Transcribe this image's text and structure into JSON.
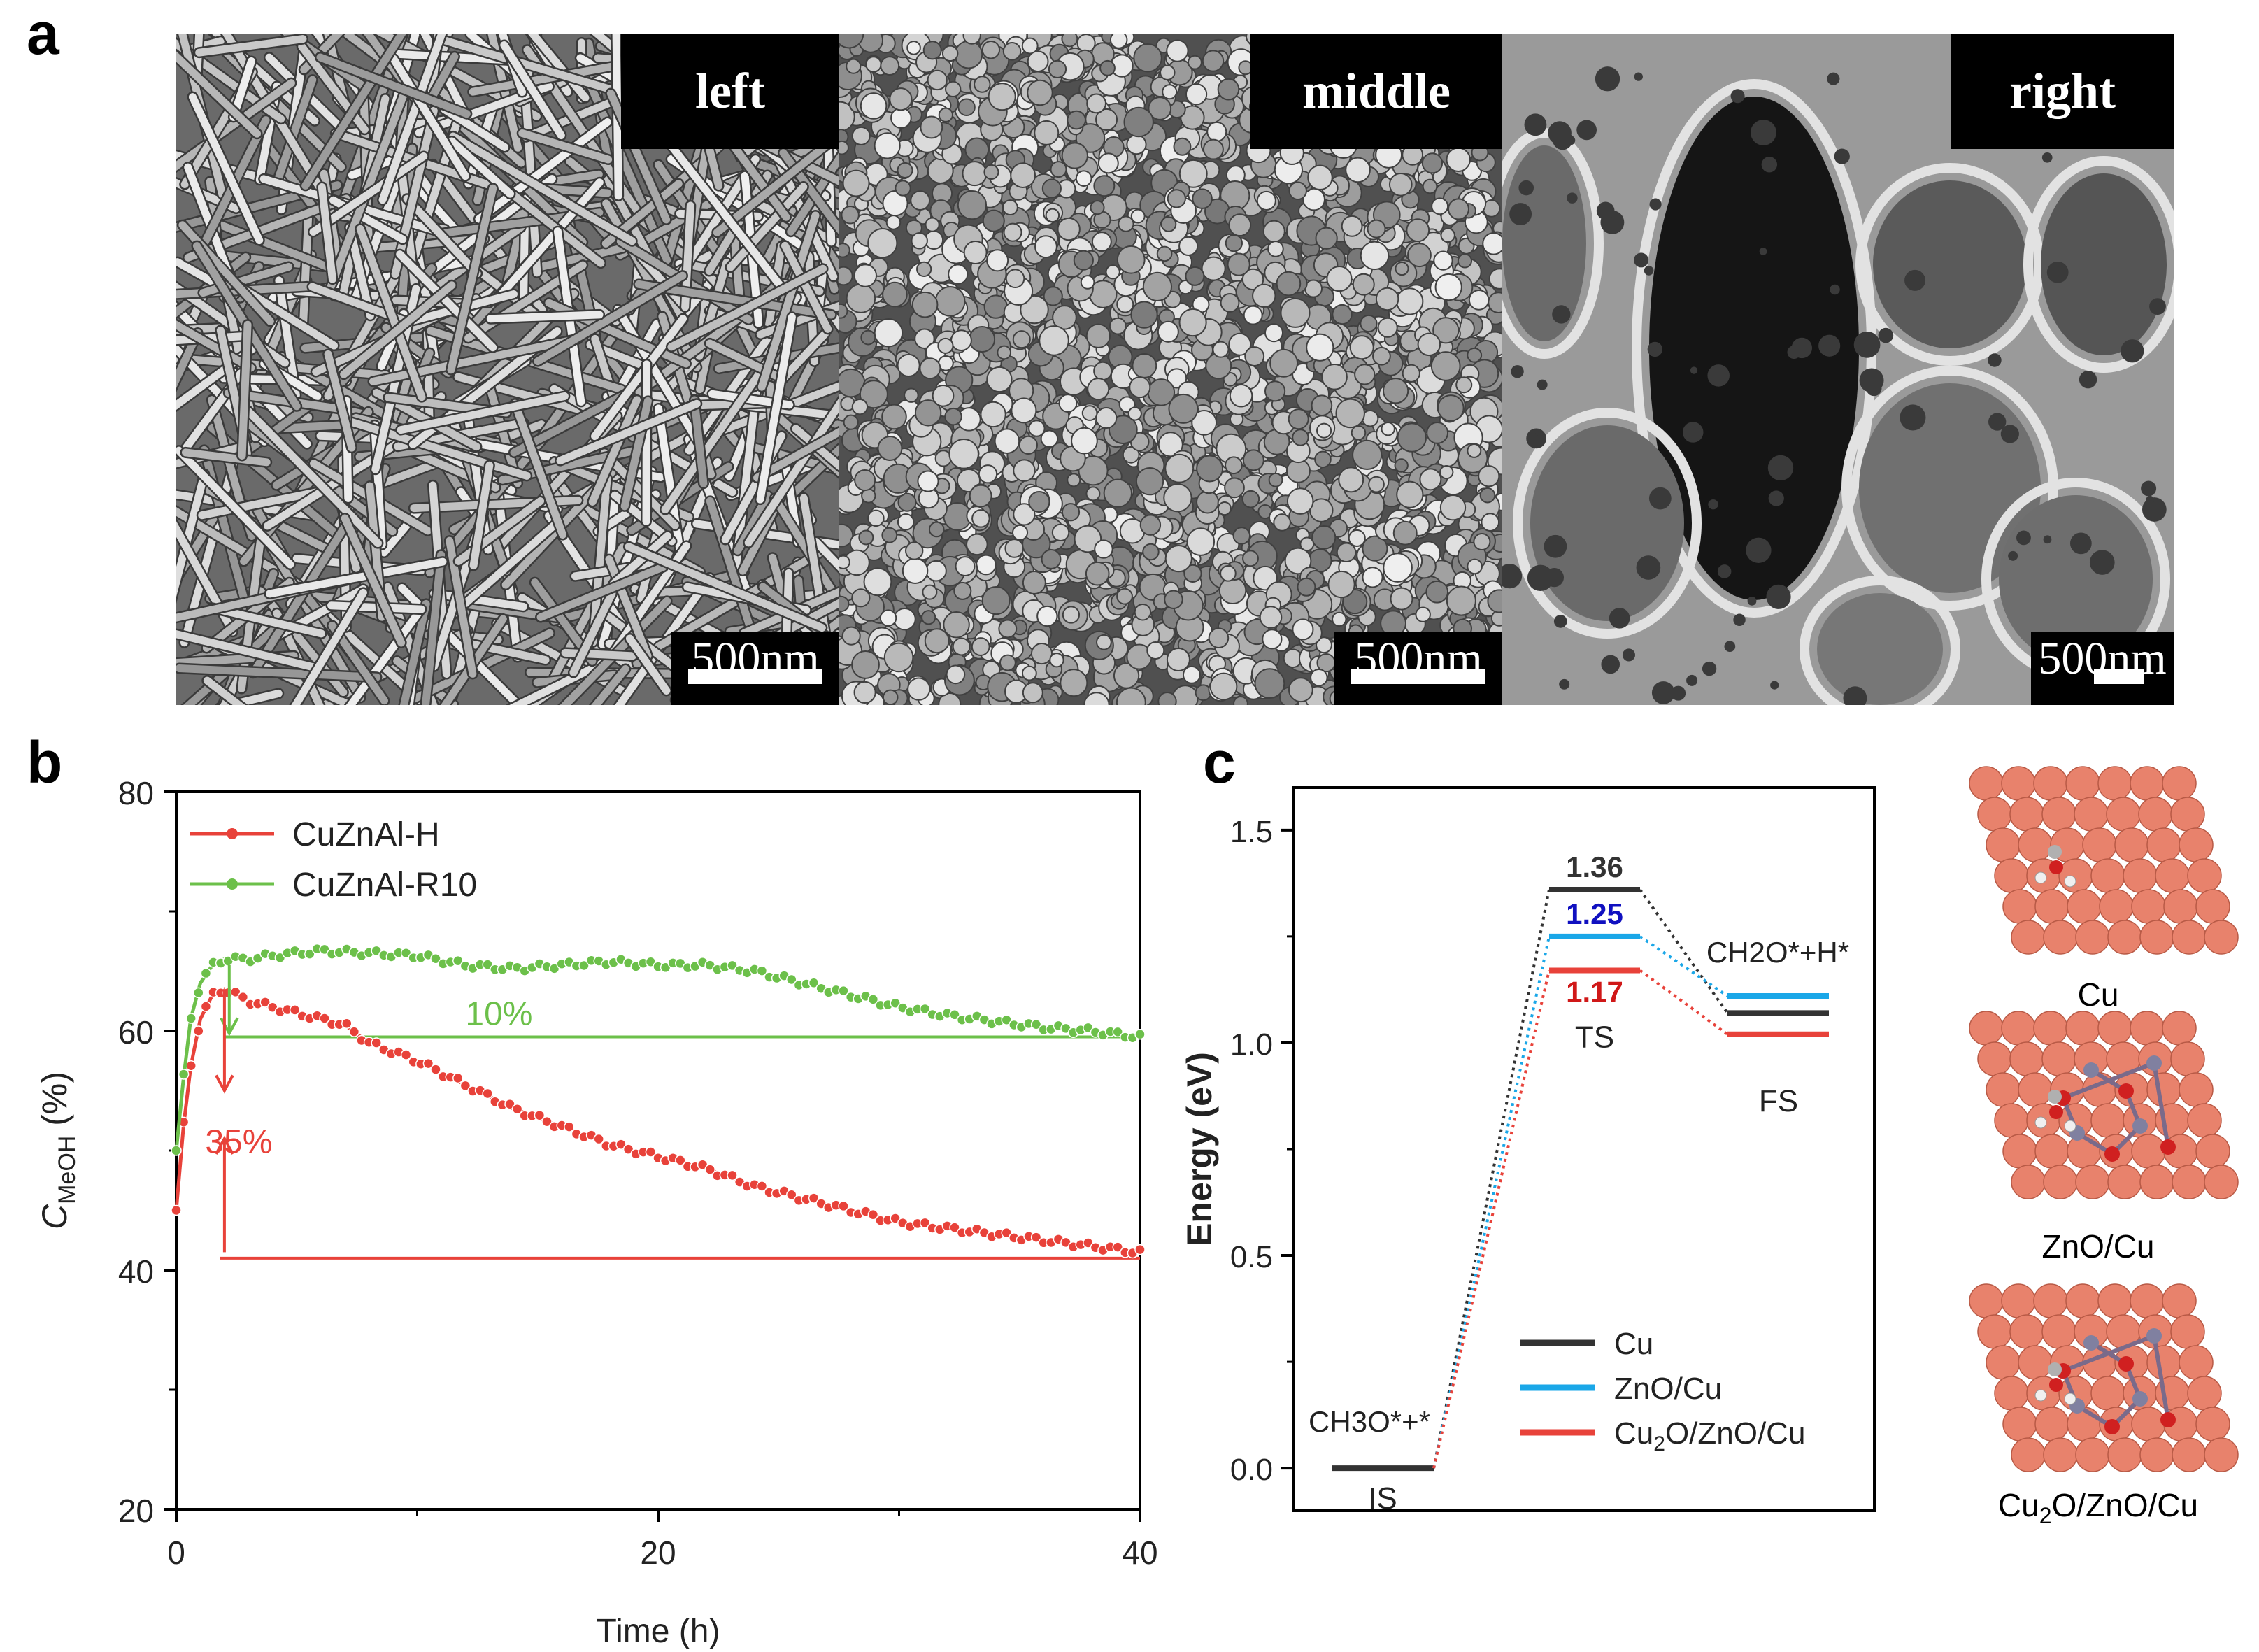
{
  "panels": {
    "a": "a",
    "b": "b",
    "c": "c"
  },
  "sem_images": [
    {
      "label": "left",
      "scale": "500nm",
      "texture": "nanorods"
    },
    {
      "label": "middle",
      "scale": "500nm",
      "texture": "nanoparticles"
    },
    {
      "label": "right",
      "scale": "500nm",
      "texture": "porous-foam"
    }
  ],
  "colors": {
    "red": "#e8423a",
    "green": "#6cc04a",
    "black": "#333333",
    "blue": "#1aa7e8",
    "cu_atom": "#e8826c"
  },
  "chart_data": [
    {
      "type": "line",
      "title": "",
      "xlabel": "Time (h)",
      "ylabel": "C",
      "ylabel_sub": "MeOH",
      "ylabel_unit": " (%)",
      "xlim": [
        0,
        40
      ],
      "ylim": [
        20,
        80
      ],
      "xticks": [
        0,
        20,
        40
      ],
      "yticks": [
        20,
        40,
        60,
        80
      ],
      "legend": "top-left",
      "series": [
        {
          "name": "CuZnAl-H",
          "color": "#e8423a",
          "x": [
            0,
            0.3,
            0.6,
            1,
            1.5,
            2,
            3,
            4,
            5,
            6,
            7,
            8,
            10,
            12,
            14,
            16,
            18,
            20,
            22,
            24,
            26,
            28,
            30,
            32,
            34,
            36,
            38,
            40
          ],
          "y": [
            45,
            52,
            57,
            61,
            63,
            63.5,
            62.5,
            62,
            61.5,
            61,
            60.5,
            59,
            57.5,
            55.5,
            53.5,
            52,
            50.5,
            49.5,
            48.5,
            47,
            46,
            45,
            44,
            43.5,
            43,
            42.5,
            42,
            41.5
          ]
        },
        {
          "name": "CuZnAl-R10",
          "color": "#6cc04a",
          "x": [
            0,
            0.3,
            0.6,
            1,
            1.5,
            2,
            3,
            4,
            5,
            6,
            8,
            10,
            12,
            14,
            16,
            18,
            20,
            22,
            24,
            26,
            28,
            30,
            32,
            34,
            36,
            38,
            40
          ],
          "y": [
            50,
            56,
            61,
            64,
            65.5,
            66,
            66,
            66.3,
            66.5,
            66.7,
            66.5,
            66.3,
            65.5,
            65.2,
            65.5,
            65.8,
            65.5,
            65.5,
            65,
            64,
            63,
            62,
            61.3,
            60.8,
            60.3,
            60,
            59.5
          ]
        }
      ],
      "annotations": [
        {
          "text": "10%",
          "color": "#6cc04a"
        },
        {
          "text": "35%",
          "color": "#e8423a"
        }
      ],
      "reference_lines": [
        {
          "y": 59.5,
          "color": "#6cc04a"
        },
        {
          "y": 41,
          "color": "#e8423a"
        }
      ]
    },
    {
      "type": "line",
      "title": "",
      "xlabel": "",
      "ylabel": "Energy (eV)",
      "ylim": [
        -0.1,
        1.6
      ],
      "yticks": [
        0.0,
        0.5,
        1.0,
        1.5
      ],
      "ytick_labels": [
        "0.0",
        "0.5",
        "1.0",
        "1.5"
      ],
      "states": [
        "IS",
        "TS",
        "FS"
      ],
      "state_labels": {
        "is_species": "CH3O*+*",
        "fs_species": "CH2O*+H*",
        "ts": "TS",
        "is": "IS",
        "fs": "FS"
      },
      "legend": "bottom-center",
      "series": [
        {
          "name": "Cu",
          "color": "#333333",
          "values": [
            0.0,
            1.36,
            1.07
          ],
          "ts_label": "1.36"
        },
        {
          "name": "ZnO/Cu",
          "color": "#1aa7e8",
          "values": [
            0.0,
            1.25,
            1.11
          ],
          "ts_label": "1.25",
          "label_color": "#1010c0"
        },
        {
          "name": "Cu2O/ZnO/Cu",
          "color": "#e8423a",
          "values": [
            0.0,
            1.17,
            1.02
          ],
          "ts_label": "1.17",
          "label_color": "#d01818"
        }
      ]
    }
  ],
  "legend_c": {
    "cu": "Cu",
    "zno_cu": "ZnO/Cu",
    "cu2o_prefix": "Cu",
    "cu2o_sub": "2",
    "cu2o_suffix": "O/ZnO/Cu"
  },
  "models": [
    {
      "label": "Cu"
    },
    {
      "label": "ZnO/Cu"
    },
    {
      "label_prefix": "Cu",
      "label_sub": "2",
      "label_suffix": "O/ZnO/Cu"
    }
  ]
}
